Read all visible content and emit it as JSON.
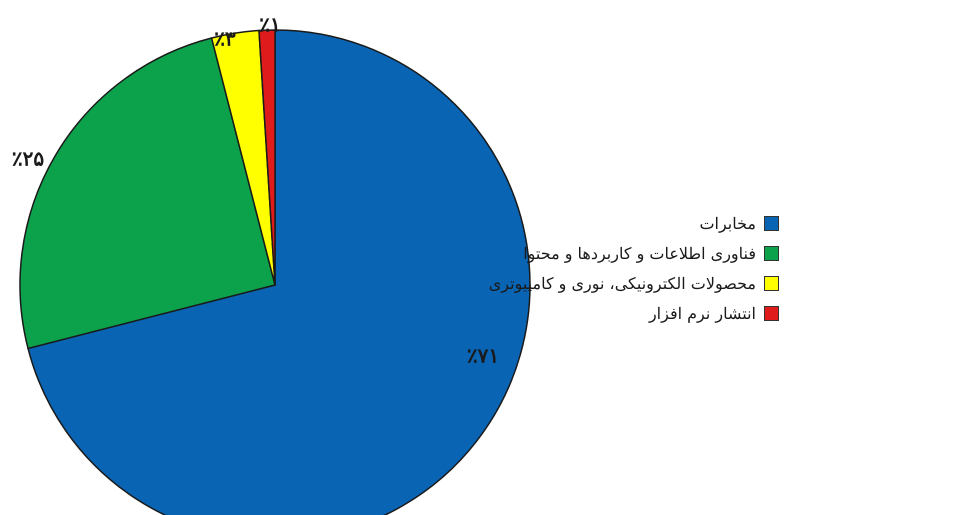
{
  "chart_data": {
    "type": "pie",
    "categories": [
      "مخابرات",
      "فناوری اطلاعات و کاربردها و محتوا",
      "محصولات الکترونیکی، نوری و کامپیوتری",
      "انتشار نرم افزار"
    ],
    "values": [
      71,
      25,
      3,
      1
    ],
    "data_labels": [
      "٪۷۱",
      "٪۲۵",
      "٪۳",
      "٪۱"
    ],
    "colors": [
      "#0a64b4",
      "#0ca24c",
      "#ffff00",
      "#e01b1b"
    ],
    "start": "top",
    "direction": "clockwise",
    "legend_position": "right"
  }
}
